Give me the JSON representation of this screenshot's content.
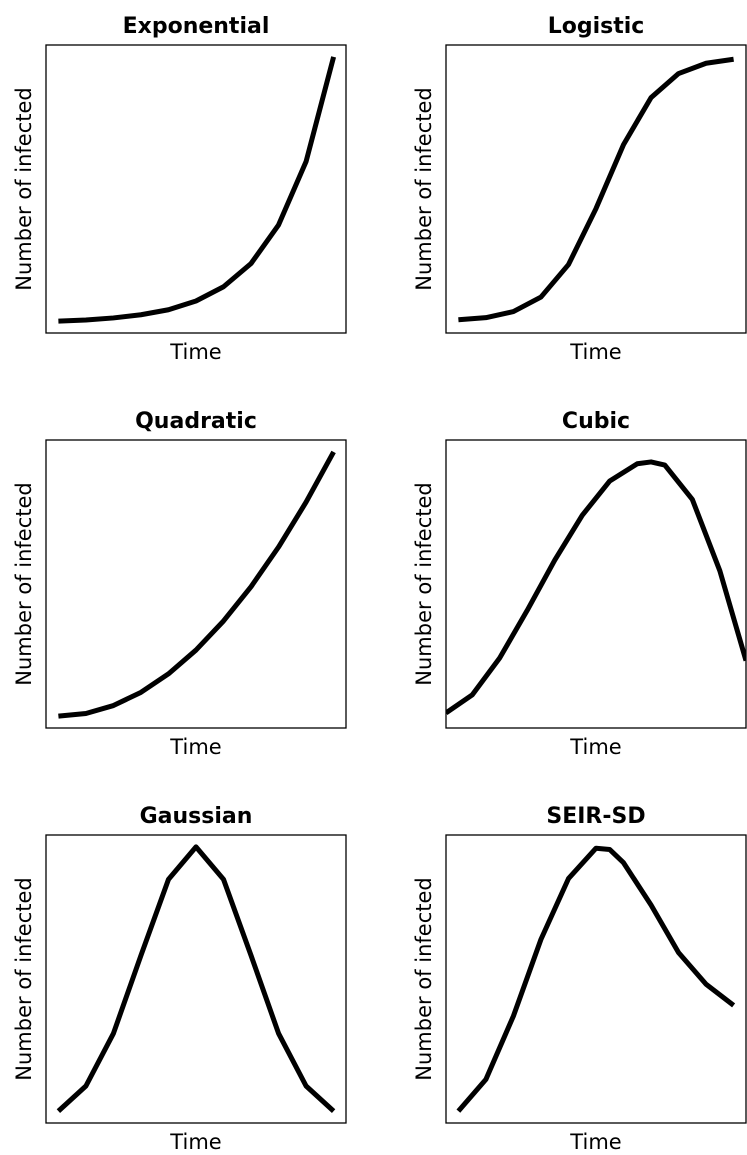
{
  "chart_data": [
    {
      "type": "line",
      "title": "Exponential",
      "xlabel": "Time",
      "ylabel": "Number of infected",
      "x": [
        0,
        0.1,
        0.2,
        0.3,
        0.4,
        0.5,
        0.6,
        0.7,
        0.8,
        0.9,
        1
      ],
      "values": [
        0,
        0.004,
        0.012,
        0.024,
        0.043,
        0.076,
        0.13,
        0.218,
        0.364,
        0.604,
        1
      ],
      "xlim": [
        -0.045,
        1.045
      ],
      "ylim": [
        -0.045,
        1.045
      ],
      "color": "#000000"
    },
    {
      "type": "line",
      "title": "Logistic",
      "xlabel": "Time",
      "ylabel": "Number of infected",
      "x": [
        0,
        0.1,
        0.2,
        0.3,
        0.4,
        0.5,
        0.6,
        0.7,
        0.8,
        0.9,
        1
      ],
      "values": [
        0.005,
        0.013,
        0.036,
        0.091,
        0.214,
        0.426,
        0.668,
        0.846,
        0.937,
        0.976,
        0.991
      ],
      "xlim": [
        -0.045,
        1.045
      ],
      "ylim": [
        -0.045,
        1.045
      ],
      "color": "#000000"
    },
    {
      "type": "line",
      "title": "Quadratic",
      "xlabel": "Time",
      "ylabel": "Number of infected",
      "x": [
        0,
        0.1,
        0.2,
        0.3,
        0.4,
        0.5,
        0.6,
        0.7,
        0.8,
        0.9,
        1
      ],
      "values": [
        0,
        0.01,
        0.04,
        0.09,
        0.16,
        0.25,
        0.36,
        0.49,
        0.64,
        0.81,
        1
      ],
      "xlim": [
        -0.045,
        1.045
      ],
      "ylim": [
        -0.045,
        1.045
      ],
      "color": "#000000"
    },
    {
      "type": "line",
      "title": "Cubic",
      "xlabel": "Time",
      "ylabel": "Number of infected",
      "x": [
        -0.045,
        0.05,
        0.15,
        0.25,
        0.35,
        0.45,
        0.55,
        0.65,
        0.7,
        0.75,
        0.85,
        0.95,
        1.045
      ],
      "values": [
        0.012,
        0.08,
        0.22,
        0.4,
        0.59,
        0.76,
        0.89,
        0.955,
        0.962,
        0.95,
        0.82,
        0.55,
        0.21
      ],
      "xlim": [
        -0.045,
        1.045
      ],
      "ylim": [
        -0.045,
        1.045
      ],
      "color": "#000000"
    },
    {
      "type": "line",
      "title": "Gaussian",
      "xlabel": "Time",
      "ylabel": "Number of infected",
      "x": [
        0,
        0.1,
        0.2,
        0.3,
        0.4,
        0.5,
        0.6,
        0.7,
        0.8,
        0.9,
        1
      ],
      "values": [
        0,
        0.095,
        0.294,
        0.589,
        0.877,
        1,
        0.877,
        0.589,
        0.294,
        0.095,
        0
      ],
      "xlim": [
        -0.045,
        1.045
      ],
      "ylim": [
        -0.045,
        1.045
      ],
      "color": "#000000"
    },
    {
      "type": "line",
      "title": "SEIR-SD",
      "xlabel": "Time",
      "ylabel": "Number of infected",
      "x": [
        0,
        0.1,
        0.2,
        0.3,
        0.4,
        0.5,
        0.55,
        0.6,
        0.7,
        0.8,
        0.9,
        1
      ],
      "values": [
        0,
        0.12,
        0.36,
        0.65,
        0.88,
        0.995,
        0.99,
        0.94,
        0.78,
        0.6,
        0.48,
        0.4
      ],
      "xlim": [
        -0.045,
        1.045
      ],
      "ylim": [
        -0.045,
        1.045
      ],
      "color": "#000000"
    }
  ]
}
